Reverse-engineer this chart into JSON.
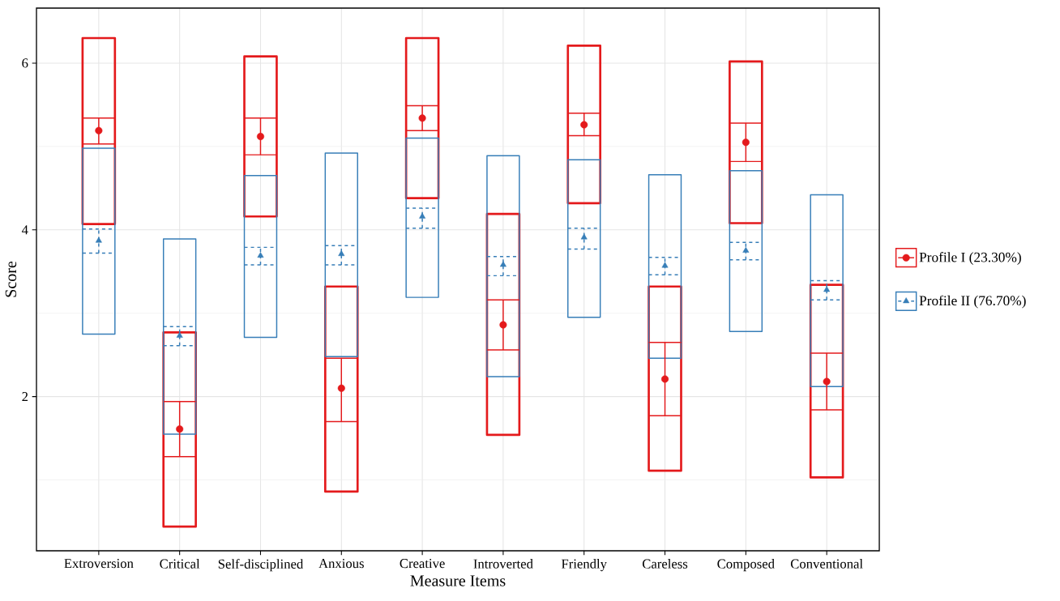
{
  "chart_data": {
    "type": "bar",
    "xlabel": "Measure Items",
    "ylabel": "Score",
    "categories": [
      "Extroversion",
      "Critical",
      "Self-disciplined",
      "Anxious",
      "Creative",
      "Introverted",
      "Friendly",
      "Careless",
      "Composed",
      "Conventional"
    ],
    "ylim": [
      0.15,
      6.66
    ],
    "yticks": [
      {
        "value": 1,
        "label": null
      },
      2,
      {
        "value": 3,
        "label": null
      },
      4,
      {
        "value": 5,
        "label": null
      },
      6
    ],
    "grid": true,
    "legend": "right",
    "series": [
      {
        "color": "#e41a1c",
        "base": [
          4.07,
          0.44,
          4.16,
          0.86,
          4.38,
          1.54,
          4.32,
          1.11,
          4.08,
          1.03
        ],
        "values": [
          2.23,
          2.33,
          1.92,
          2.46,
          1.92,
          2.65,
          1.89,
          2.21,
          1.94,
          2.31
        ]
      },
      {
        "color": "#377eb8",
        "base": [
          2.75,
          1.55,
          2.71,
          2.48,
          3.19,
          2.24,
          2.95,
          2.46,
          2.78,
          2.12
        ],
        "values": [
          2.23,
          2.34,
          1.94,
          2.44,
          1.91,
          2.65,
          1.89,
          2.2,
          1.93,
          2.3
        ]
      },
      {
        "type": "scatter",
        "name": "Profile I (23.30%)",
        "color": "#e41a1c",
        "marker": "circle",
        "line_style": "solid",
        "values": [
          5.19,
          1.61,
          5.12,
          2.1,
          5.34,
          2.86,
          5.26,
          2.21,
          5.05,
          2.18
        ],
        "errors": [
          [
            5.03,
            5.34
          ],
          [
            1.28,
            1.94
          ],
          [
            4.9,
            5.34
          ],
          [
            1.7,
            2.46
          ],
          [
            5.19,
            5.49
          ],
          [
            2.56,
            3.16
          ],
          [
            5.13,
            5.4
          ],
          [
            1.77,
            2.65
          ],
          [
            4.82,
            5.28
          ],
          [
            1.84,
            2.52
          ]
        ]
      },
      {
        "type": "scatter",
        "name": "Profile II (76.70%)",
        "color": "#377eb8",
        "marker": "triangle",
        "line_style": "dashed",
        "values": [
          3.87,
          2.73,
          3.69,
          3.71,
          4.16,
          3.58,
          3.91,
          3.57,
          3.75,
          3.28
        ],
        "errors": [
          [
            3.72,
            4.01
          ],
          [
            2.61,
            2.84
          ],
          [
            3.58,
            3.79
          ],
          [
            3.58,
            3.81
          ],
          [
            4.02,
            4.26
          ],
          [
            3.45,
            3.68
          ],
          [
            3.77,
            4.02
          ],
          [
            3.46,
            3.67
          ],
          [
            3.64,
            3.85
          ],
          [
            3.16,
            3.39
          ]
        ]
      }
    ]
  }
}
